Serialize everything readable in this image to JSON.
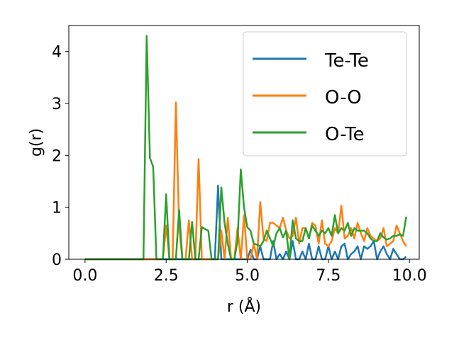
{
  "chart_data": {
    "type": "line",
    "xlabel": "r (Å)",
    "ylabel": "g(r)",
    "xlim": [
      -0.5,
      10.3
    ],
    "ylim": [
      0,
      4.5
    ],
    "xticks": [
      0.0,
      2.5,
      5.0,
      7.5,
      10.0
    ],
    "xtick_labels": [
      "0.0",
      "2.5",
      "5.0",
      "7.5",
      "10.0"
    ],
    "yticks": [
      0,
      1,
      2,
      3,
      4
    ],
    "ytick_labels": [
      "0",
      "1",
      "2",
      "3",
      "4"
    ],
    "legend_position": "top-right",
    "grid": false,
    "series": [
      {
        "name": "Te-Te",
        "color": "#1f77b4",
        "x": [
          0.0,
          3.8,
          3.9,
          4.0,
          4.1,
          4.2,
          4.3,
          4.4,
          4.5,
          4.6,
          4.7,
          4.8,
          4.9,
          5.0,
          5.1,
          5.2,
          5.3,
          5.4,
          5.5,
          5.6,
          5.7,
          5.8,
          5.9,
          6.0,
          6.1,
          6.2,
          6.3,
          6.4,
          6.5,
          6.6,
          6.7,
          6.8,
          6.9,
          7.0,
          7.1,
          7.2,
          7.3,
          7.4,
          7.5,
          7.6,
          7.7,
          7.8,
          7.9,
          8.0,
          8.1,
          8.2,
          8.3,
          8.4,
          8.5,
          8.6,
          8.7,
          8.8,
          8.9,
          9.0,
          9.1,
          9.2,
          9.3,
          9.4,
          9.5,
          9.6,
          9.7,
          9.8,
          9.9
        ],
        "y": [
          0,
          0,
          0,
          0,
          1.42,
          0,
          0,
          0,
          0,
          0,
          0,
          0,
          0,
          0,
          0.18,
          0,
          0,
          0.25,
          0,
          0,
          0,
          0.35,
          0,
          0.1,
          0,
          0.15,
          0,
          0.35,
          0,
          0,
          0.15,
          0,
          0.3,
          0,
          0,
          0.25,
          0,
          0,
          0.25,
          0,
          0.15,
          0,
          0.25,
          0.3,
          0,
          0.1,
          0.15,
          0.25,
          0,
          0.25,
          0.2,
          0.25,
          0.35,
          0,
          0.15,
          0.25,
          0.1,
          0,
          0.2,
          0.1,
          0,
          0,
          0.05
        ]
      },
      {
        "name": "O-O",
        "color": "#ff7f0e",
        "x": [
          0.0,
          2.4,
          2.5,
          2.6,
          2.7,
          2.8,
          2.9,
          3.0,
          3.1,
          3.2,
          3.3,
          3.4,
          3.5,
          3.6,
          3.7,
          3.8,
          3.9,
          4.0,
          4.1,
          4.2,
          4.3,
          4.4,
          4.5,
          4.6,
          4.7,
          4.8,
          4.9,
          5.0,
          5.1,
          5.2,
          5.3,
          5.4,
          5.5,
          5.6,
          5.7,
          5.8,
          5.9,
          6.0,
          6.1,
          6.2,
          6.3,
          6.4,
          6.5,
          6.6,
          6.7,
          6.8,
          6.9,
          7.0,
          7.1,
          7.2,
          7.3,
          7.4,
          7.5,
          7.6,
          7.7,
          7.8,
          7.9,
          8.0,
          8.1,
          8.2,
          8.3,
          8.4,
          8.5,
          8.6,
          8.7,
          8.8,
          8.9,
          9.0,
          9.1,
          9.2,
          9.3,
          9.4,
          9.5,
          9.6,
          9.7,
          9.8,
          9.9
        ],
        "y": [
          0,
          0,
          0.65,
          0,
          0,
          3.02,
          0.6,
          0,
          0,
          0.75,
          0,
          0,
          1.93,
          0,
          0,
          0,
          0,
          0,
          0,
          0.55,
          0,
          0.8,
          0,
          0,
          0.6,
          0,
          0.85,
          0,
          0,
          0.3,
          0,
          1.1,
          0.4,
          0.35,
          0.7,
          0.7,
          0.65,
          0.6,
          0.8,
          0.55,
          0.4,
          0.45,
          0.8,
          0.3,
          0.6,
          0.6,
          0.4,
          0.7,
          0.65,
          0.3,
          0.75,
          0.3,
          0.25,
          0.35,
          0.6,
          0.5,
          1.03,
          0.4,
          0.45,
          0.6,
          0.4,
          0.7,
          0.5,
          0.35,
          0.6,
          0.45,
          0.4,
          0.35,
          0.4,
          0.6,
          0.25,
          0.3,
          0.35,
          0.65,
          0.5,
          0.35,
          0.25
        ]
      },
      {
        "name": "O-Te",
        "color": "#2ca02c",
        "x": [
          0.0,
          1.8,
          1.9,
          2.0,
          2.1,
          2.2,
          2.3,
          2.4,
          2.5,
          2.6,
          2.7,
          2.8,
          2.9,
          3.0,
          3.1,
          3.2,
          3.3,
          3.4,
          3.5,
          3.6,
          3.7,
          3.8,
          3.9,
          4.0,
          4.1,
          4.2,
          4.3,
          4.4,
          4.5,
          4.6,
          4.7,
          4.8,
          4.9,
          5.0,
          5.1,
          5.2,
          5.3,
          5.4,
          5.5,
          5.6,
          5.7,
          5.8,
          5.9,
          6.0,
          6.1,
          6.2,
          6.3,
          6.4,
          6.5,
          6.6,
          6.7,
          6.8,
          6.9,
          7.0,
          7.1,
          7.2,
          7.3,
          7.4,
          7.5,
          7.6,
          7.7,
          7.8,
          7.9,
          8.0,
          8.1,
          8.2,
          8.3,
          8.4,
          8.5,
          8.6,
          8.7,
          8.8,
          8.9,
          9.0,
          9.1,
          9.2,
          9.3,
          9.4,
          9.5,
          9.6,
          9.7,
          9.8,
          9.9
        ],
        "y": [
          0,
          0,
          4.3,
          1.95,
          1.78,
          0,
          0,
          0,
          1.25,
          0,
          0,
          0,
          0.95,
          0,
          0,
          0,
          0.72,
          0,
          0,
          0.62,
          0.58,
          0.55,
          0,
          0,
          0,
          1.38,
          0.7,
          0.3,
          0,
          0,
          0.35,
          1.73,
          1.0,
          0.62,
          0.55,
          0.3,
          0.28,
          0.25,
          0.35,
          0.55,
          0.4,
          0.25,
          0.5,
          0.6,
          0.42,
          0.55,
          0,
          0.75,
          0.4,
          0.35,
          0.35,
          0.6,
          0.4,
          0.65,
          0.55,
          0.45,
          0.55,
          0.5,
          0.6,
          0.45,
          0.85,
          0.5,
          0.6,
          0.55,
          0.7,
          0.45,
          0.6,
          0.55,
          0.55,
          0.55,
          0.5,
          0.4,
          0.35,
          0.35,
          0.5,
          0.42,
          0.38,
          0.4,
          0.45,
          0.45,
          0.48,
          0.45,
          0.82
        ]
      }
    ]
  }
}
